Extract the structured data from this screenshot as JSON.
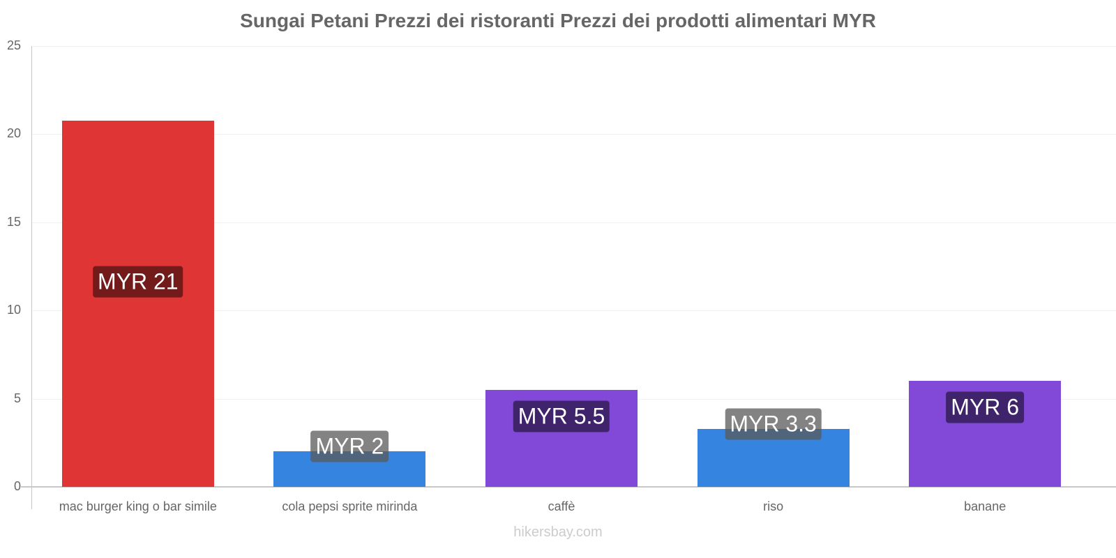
{
  "title": "Sungai Petani Prezzi dei ristoranti Prezzi dei prodotti alimentari MYR",
  "footer": "hikersbay.com",
  "yaxis": {
    "ticks": [
      "0",
      "5",
      "10",
      "15",
      "20",
      "25"
    ]
  },
  "bars": [
    {
      "category": "mac burger king o bar simile",
      "value": 20.77,
      "label": "MYR 21",
      "color": "#e03535",
      "label_bg": "#731a1a"
    },
    {
      "category": "cola pepsi sprite mirinda",
      "value": 2.02,
      "label": "MYR 2",
      "color": "#3584e0",
      "label_bg": "rgba(90,90,90,0.75)"
    },
    {
      "category": "caffè",
      "value": 5.5,
      "label": "MYR 5.5",
      "color": "#8249d9",
      "label_bg": "#3f246c"
    },
    {
      "category": "riso",
      "value": 3.28,
      "label": "MYR 3.3",
      "color": "#3584e0",
      "label_bg": "rgba(90,90,90,0.75)"
    },
    {
      "category": "banane",
      "value": 6.01,
      "label": "MYR 6",
      "color": "#8249d9",
      "label_bg": "#3f246c"
    }
  ],
  "chart_data": {
    "type": "bar",
    "title": "Sungai Petani Prezzi dei ristoranti Prezzi dei prodotti alimentari MYR",
    "categories": [
      "mac burger king o bar simile",
      "cola pepsi sprite mirinda",
      "caffè",
      "riso",
      "banane"
    ],
    "values": [
      20.77,
      2.02,
      5.5,
      3.28,
      6.01
    ],
    "data_labels": [
      "MYR 21",
      "MYR 2",
      "MYR 5.5",
      "MYR 3.3",
      "MYR 6"
    ],
    "xlabel": "",
    "ylabel": "",
    "ylim": [
      0,
      25
    ],
    "yticks": [
      0,
      5,
      10,
      15,
      20,
      25
    ],
    "grid": true,
    "legend": null,
    "colors": [
      "#e03535",
      "#3584e0",
      "#8249d9",
      "#3584e0",
      "#8249d9"
    ]
  }
}
